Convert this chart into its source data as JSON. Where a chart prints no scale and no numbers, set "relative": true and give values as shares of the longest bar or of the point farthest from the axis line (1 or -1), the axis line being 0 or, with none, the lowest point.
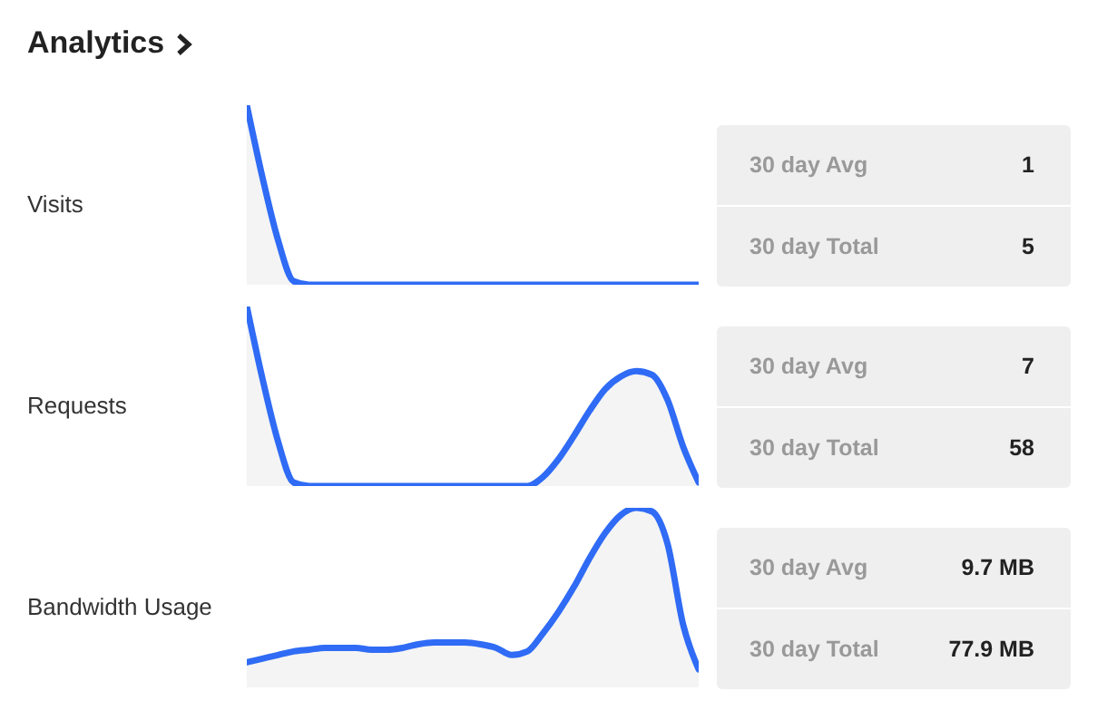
{
  "chart_data": [
    {
      "type": "area",
      "title": "Analytics",
      "ylabel": "Visits",
      "relative": true,
      "categories": [
        null,
        null,
        null,
        null,
        null,
        null,
        null,
        null,
        null,
        null,
        null,
        null,
        null,
        null,
        null,
        null,
        null,
        null,
        null,
        null,
        null,
        null,
        null,
        null,
        null,
        null,
        null,
        null,
        null,
        null
      ],
      "series": [
        {
          "color": "#2f6bf5",
          "values": [
            1,
            0.6,
            0.25,
            0.02,
            0,
            0,
            0,
            0,
            0,
            0,
            0,
            0,
            0,
            0,
            0,
            0,
            0,
            0,
            0,
            0,
            0,
            0,
            0,
            0,
            0,
            0,
            0,
            0,
            0,
            0
          ]
        }
      ],
      "annotations": [
        "30 day Avg",
        "1",
        "30 day Total",
        "5"
      ]
    },
    {
      "type": "area",
      "ylabel": "Requests",
      "relative": true,
      "categories": [
        null,
        null,
        null,
        null,
        null,
        null,
        null,
        null,
        null,
        null,
        null,
        null,
        null,
        null,
        null,
        null,
        null,
        null,
        null,
        null,
        null,
        null,
        null,
        null,
        null,
        null,
        null,
        null,
        null,
        null
      ],
      "series": [
        {
          "color": "#2f6bf5",
          "values": [
            1,
            0.6,
            0.25,
            0.02,
            0,
            0,
            0,
            0,
            0,
            0,
            0,
            0,
            0,
            0,
            0,
            0,
            0,
            0,
            0,
            0.05,
            0.15,
            0.28,
            0.42,
            0.54,
            0.61,
            0.64,
            0.62,
            0.48,
            0.22,
            0.02
          ]
        }
      ],
      "annotations": [
        "30 day Avg",
        "7",
        "30 day Total",
        "58"
      ]
    },
    {
      "type": "area",
      "ylabel": "Bandwidth Usage",
      "relative": true,
      "categories": [
        null,
        null,
        null,
        null,
        null,
        null,
        null,
        null,
        null,
        null,
        null,
        null,
        null,
        null,
        null,
        null,
        null,
        null,
        null,
        null,
        null,
        null,
        null,
        null,
        null,
        null,
        null,
        null,
        null,
        null
      ],
      "series": [
        {
          "color": "#2f6bf5",
          "values": [
            0.14,
            0.16,
            0.18,
            0.2,
            0.21,
            0.22,
            0.22,
            0.22,
            0.21,
            0.21,
            0.22,
            0.24,
            0.25,
            0.25,
            0.25,
            0.24,
            0.22,
            0.18,
            0.2,
            0.3,
            0.42,
            0.56,
            0.72,
            0.86,
            0.96,
            1,
            0.98,
            0.8,
            0.35,
            0.1
          ]
        }
      ],
      "annotations": [
        "30 day Avg",
        "9.7 MB",
        "30 day Total",
        "77.9 MB"
      ]
    }
  ]
}
